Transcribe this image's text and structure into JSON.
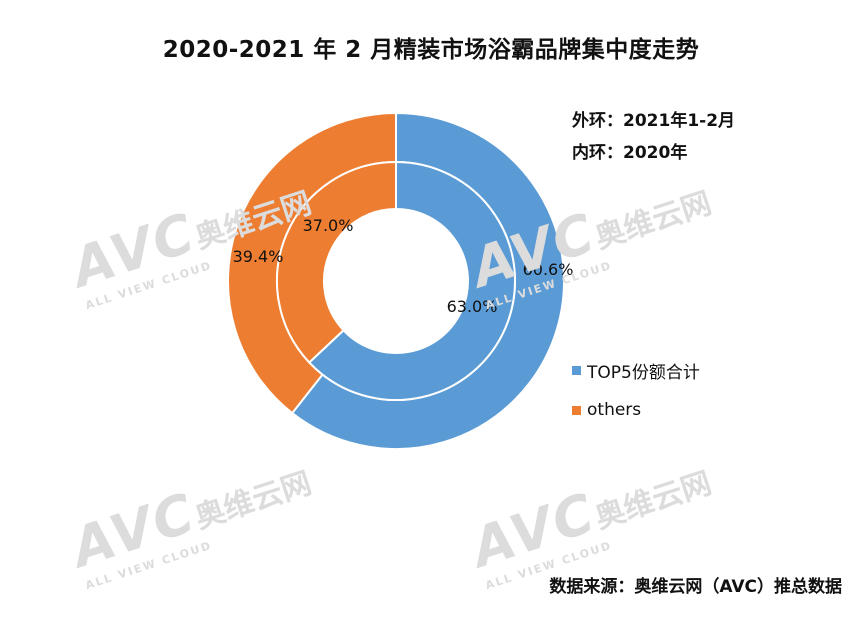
{
  "chart_data": {
    "type": "pie",
    "title": "2020-2021 年 2 月精装市场浴霸品牌集中度走势",
    "categories": [
      "TOP5份额合计",
      "others"
    ],
    "series": [
      {
        "name": "外环：2021年1-2月",
        "values": [
          60.6,
          39.4
        ],
        "labels": [
          "60.6%",
          "39.4%"
        ]
      },
      {
        "name": "内环：2020年",
        "values": [
          63.0,
          37.0
        ],
        "labels": [
          "63.0%",
          "37.0%"
        ]
      }
    ],
    "legend_position": "right",
    "notes": {
      "outer": "外环：2021年1-2月",
      "inner": "内环：2020年"
    },
    "source": "数据来源：奥维云网（AVC）推总数据"
  },
  "colors": {
    "top5": "#5b9bd5",
    "others": "#ed7d31"
  },
  "watermark": {
    "logo": "AVC",
    "cn": "奥维云网",
    "en": "ALL VIEW CLOUD"
  }
}
